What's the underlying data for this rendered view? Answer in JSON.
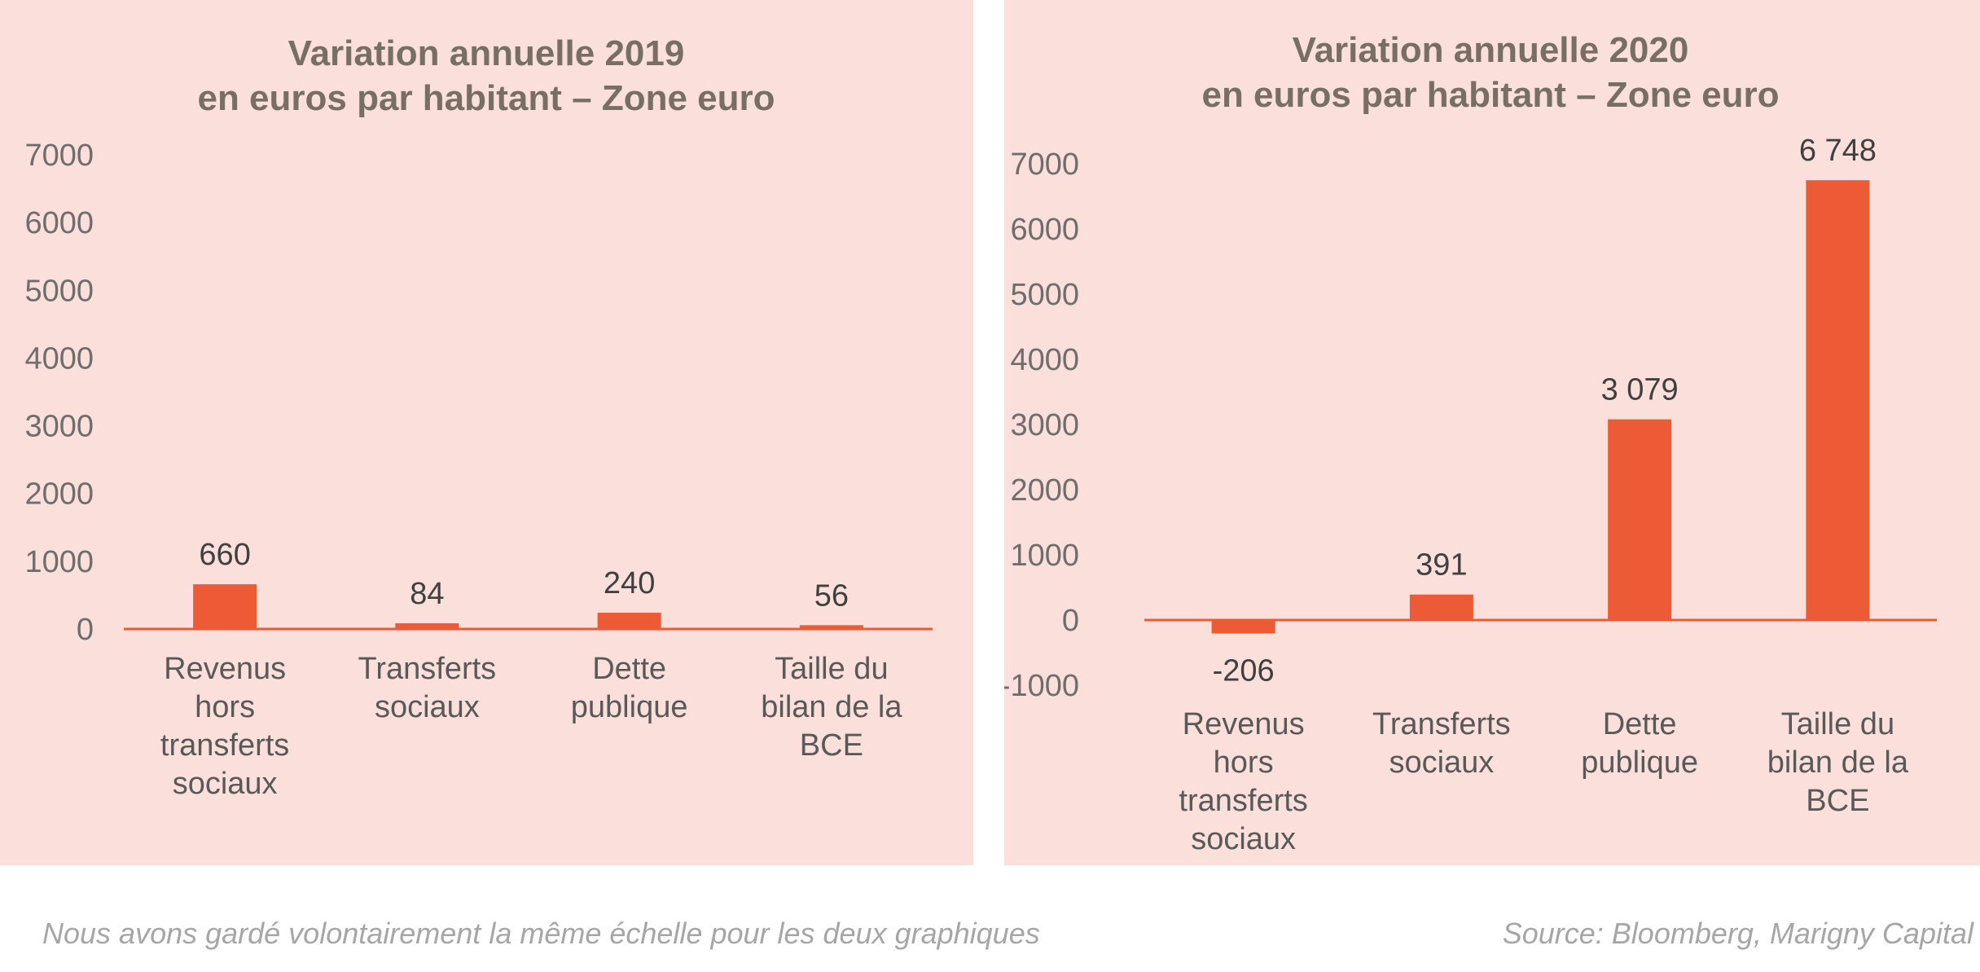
{
  "chart_data": [
    {
      "type": "bar",
      "title_lines": [
        "Variation annuelle 2019",
        "en euros par habitant – Zone euro"
      ],
      "categories": [
        [
          "Revenus",
          "hors",
          "transferts",
          "sociaux"
        ],
        [
          "Transferts",
          "sociaux"
        ],
        [
          "Dette",
          "publique"
        ],
        [
          "Taille du",
          "bilan de la",
          "BCE"
        ]
      ],
      "values": [
        660,
        84,
        240,
        56
      ],
      "value_labels": [
        "660",
        "84",
        "240",
        "56"
      ],
      "yticks": [
        0,
        1000,
        2000,
        3000,
        4000,
        5000,
        6000,
        7000
      ],
      "ylim": [
        0,
        7000
      ],
      "bar_color": "#ec5b35",
      "axis_color": "#ec5b35"
    },
    {
      "type": "bar",
      "title_lines": [
        "Variation annuelle 2020",
        "en euros par habitant – Zone euro"
      ],
      "categories": [
        [
          "Revenus",
          "hors",
          "transferts",
          "sociaux"
        ],
        [
          "Transferts",
          "sociaux"
        ],
        [
          "Dette",
          "publique"
        ],
        [
          "Taille du",
          "bilan de la",
          "BCE"
        ]
      ],
      "values": [
        -206,
        391,
        3079,
        6748
      ],
      "value_labels": [
        "-206",
        "391",
        "3 079",
        "6 748"
      ],
      "yticks": [
        -1000,
        0,
        1000,
        2000,
        3000,
        4000,
        5000,
        6000,
        7000
      ],
      "ylim": [
        -1000,
        7000
      ],
      "bar_color": "#ec5b35",
      "axis_color": "#ec5b35"
    }
  ],
  "footer": {
    "note": "Nous avons gardé volontairement la même échelle pour les deux graphiques",
    "source": "Source: Bloomberg, Marigny Capital"
  }
}
